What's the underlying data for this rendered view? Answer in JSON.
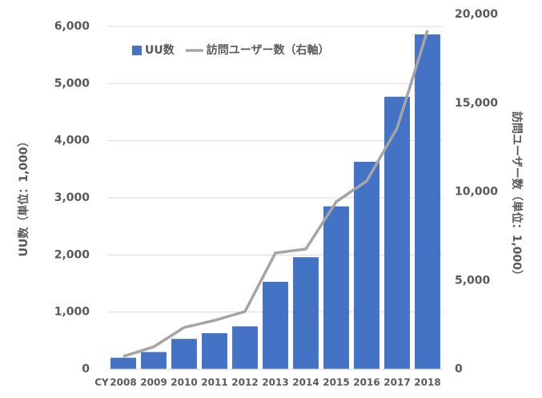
{
  "chart_data": {
    "type": "bar",
    "xlabel": "CY",
    "categories": [
      "2008",
      "2009",
      "2010",
      "2011",
      "2012",
      "2013",
      "2014",
      "2015",
      "2016",
      "2017",
      "2018"
    ],
    "series": [
      {
        "name": "UU数",
        "type": "bar",
        "color": "#4472c4",
        "values": [
          200,
          300,
          530,
          630,
          750,
          1530,
          1960,
          2850,
          3630,
          4770,
          5860
        ]
      },
      {
        "name": "訪問ユーザー数（右軸）",
        "type": "line",
        "axis": "y2",
        "color": "#a5a5a5",
        "values": [
          720,
          1260,
          2350,
          2750,
          3250,
          6550,
          6770,
          9440,
          10610,
          13590,
          19100
        ]
      }
    ],
    "ylabel": "UU数（単位：1,000）",
    "y2label": "訪問ユーザー数（単位：1,000）",
    "ylim": [
      0,
      6000
    ],
    "yticks": [
      0,
      {
        "value": 1000,
        "label": "1,000"
      },
      {
        "value": 2000,
        "label": "2,000"
      },
      {
        "value": 3000,
        "label": "3,000"
      },
      {
        "value": 4000,
        "label": "4,000"
      },
      {
        "value": 5000,
        "label": "5,000"
      },
      {
        "value": 6000,
        "label": "6,000"
      }
    ],
    "y2lim": [
      0,
      20000
    ],
    "y2ticks": [
      0,
      {
        "value": 5000,
        "label": "5,000"
      },
      {
        "value": 10000,
        "label": "10,000"
      },
      {
        "value": 15000,
        "label": "15,000"
      },
      {
        "value": 20000,
        "label": "20,000"
      }
    ],
    "grid": true
  }
}
